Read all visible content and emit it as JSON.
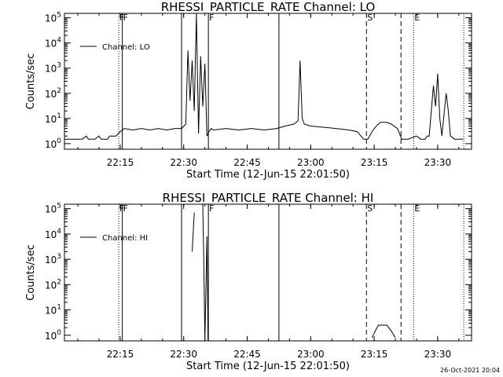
{
  "chart_data": [
    {
      "type": "line",
      "title": "RHESSI_PARTICLE_RATE Channel: LO",
      "xlabel": "Start Time (12-Jun-15 22:01:50)",
      "ylabel": "Counts/sec",
      "xlim": [
        "22:01:50",
        "23:38:00"
      ],
      "ylim": [
        0.6,
        150000
      ],
      "y_scale": "log",
      "x_tick_labels": [
        "22:15",
        "22:30",
        "22:45",
        "23:00",
        "23:15",
        "23:30"
      ],
      "y_tick_labels": [
        "10^0",
        "10^1",
        "10^2",
        "10^3",
        "10^4",
        "10^5"
      ],
      "legend": {
        "position": "top-left",
        "entries": [
          "Channel: LO"
        ]
      },
      "markers": [
        {
          "label": "F",
          "time": "22:14:40",
          "style": "dotted"
        },
        {
          "label": "F",
          "time": "22:15:30",
          "style": "solid"
        },
        {
          "label": "",
          "time": "22:29:30",
          "style": "solid"
        },
        {
          "label": "F",
          "time": "22:35:50",
          "style": "solid"
        },
        {
          "label": "",
          "time": "22:52:30",
          "style": "solid"
        },
        {
          "label": "S",
          "time": "23:13:10",
          "style": "dashed"
        },
        {
          "label": "",
          "time": "23:21:20",
          "style": "dashed"
        },
        {
          "label": "E",
          "time": "23:24:20",
          "style": "dotted"
        },
        {
          "label": "",
          "time": "23:36:10",
          "style": "dotted"
        }
      ],
      "series": [
        {
          "name": "Channel: LO",
          "x": [
            "22:01:50",
            "22:04:00",
            "22:06:00",
            "22:07:00",
            "22:07:30",
            "22:09:00",
            "22:10:00",
            "22:10:30",
            "22:12:00",
            "22:12:30",
            "22:14:00",
            "22:15:00",
            "22:16:00",
            "22:18:00",
            "22:20:00",
            "22:22:00",
            "22:24:00",
            "22:26:00",
            "22:28:00",
            "22:29:30",
            "22:30:30",
            "22:31:00",
            "22:31:30",
            "22:32:00",
            "22:32:30",
            "22:33:00",
            "22:33:30",
            "22:34:00",
            "22:34:30",
            "22:35:00",
            "22:35:30",
            "22:36:00",
            "22:36:30",
            "22:37:00",
            "22:40:00",
            "22:43:00",
            "22:46:00",
            "22:49:00",
            "22:52:00",
            "22:54:00",
            "22:56:00",
            "22:57:00",
            "22:57:30",
            "22:58:00",
            "22:58:30",
            "23:00:00",
            "23:03:00",
            "23:06:00",
            "23:09:00",
            "23:11:00",
            "23:12:30",
            "23:13:30",
            "23:14:30",
            "23:15:30",
            "23:16:30",
            "23:18:00",
            "23:19:00",
            "23:20:30",
            "23:21:30",
            "23:23:00",
            "23:25:00",
            "23:26:00",
            "23:27:00",
            "23:27:30",
            "23:28:00",
            "23:28:30",
            "23:29:00",
            "23:29:30",
            "23:30:00",
            "23:30:30",
            "23:31:00",
            "23:31:30",
            "23:32:00",
            "23:32:30",
            "23:33:00",
            "23:34:00",
            "23:36:00"
          ],
          "y": [
            1.5,
            1.5,
            1.5,
            2,
            1.5,
            1.5,
            2,
            1.5,
            1.5,
            2,
            2,
            3,
            4,
            3.5,
            4,
            3.5,
            4,
            3.5,
            4,
            4,
            6,
            5000,
            50,
            2000,
            20,
            200000,
            2.5,
            3000,
            30,
            1500,
            2,
            3,
            4,
            3.5,
            4,
            3.5,
            4,
            3.5,
            4,
            5,
            6,
            8,
            2000,
            10,
            6,
            5,
            4.5,
            4,
            3.5,
            3,
            1.5,
            1.5,
            3,
            5,
            7,
            7,
            6,
            4,
            1.5,
            1.5,
            2,
            1.5,
            1.5,
            2,
            2,
            20,
            200,
            30,
            600,
            10,
            2,
            15,
            100,
            20,
            2,
            1.5,
            1.5
          ]
        }
      ]
    },
    {
      "type": "line",
      "title": "RHESSI_PARTICLE_RATE Channel: HI",
      "xlabel": "Start Time (12-Jun-15 22:01:50)",
      "ylabel": "Counts/sec",
      "xlim": [
        "22:01:50",
        "23:38:00"
      ],
      "ylim": [
        0.6,
        150000
      ],
      "y_scale": "log",
      "x_tick_labels": [
        "22:15",
        "22:30",
        "22:45",
        "23:00",
        "23:15",
        "23:30"
      ],
      "y_tick_labels": [
        "10^0",
        "10^1",
        "10^2",
        "10^3",
        "10^4",
        "10^5"
      ],
      "legend": {
        "position": "top-left",
        "entries": [
          "Channel: HI"
        ]
      },
      "markers": [
        {
          "label": "F",
          "time": "22:14:40",
          "style": "dotted"
        },
        {
          "label": "F",
          "time": "22:15:30",
          "style": "solid"
        },
        {
          "label": "",
          "time": "22:29:30",
          "style": "solid"
        },
        {
          "label": "F",
          "time": "22:35:50",
          "style": "solid"
        },
        {
          "label": "",
          "time": "22:52:30",
          "style": "solid"
        },
        {
          "label": "S",
          "time": "23:13:10",
          "style": "dashed"
        },
        {
          "label": "",
          "time": "23:21:20",
          "style": "dashed"
        },
        {
          "label": "E",
          "time": "23:24:20",
          "style": "dotted"
        },
        {
          "label": "",
          "time": "23:36:10",
          "style": "dotted"
        }
      ],
      "series": [
        {
          "name": "Channel: HI",
          "segments": [
            {
              "x": [
                "22:32:00",
                "22:32:30"
              ],
              "y": [
                2000,
                70000
              ]
            },
            {
              "x": [
                "22:34:30",
                "22:34:45",
                "22:35:00",
                "22:35:30",
                "22:35:45"
              ],
              "y": [
                150000,
                800,
                0.3,
                8000,
                0.3
              ]
            },
            {
              "x": [
                "23:14:30",
                "23:15:00",
                "23:15:30",
                "23:16:00",
                "23:18:00",
                "23:19:00",
                "23:20:00"
              ],
              "y": [
                0.8,
                1.2,
                1.8,
                2.5,
                2.5,
                1.5,
                0.8
              ]
            }
          ]
        }
      ]
    }
  ],
  "footer": {
    "timestamp": "26-Oct-2021 20:04"
  }
}
